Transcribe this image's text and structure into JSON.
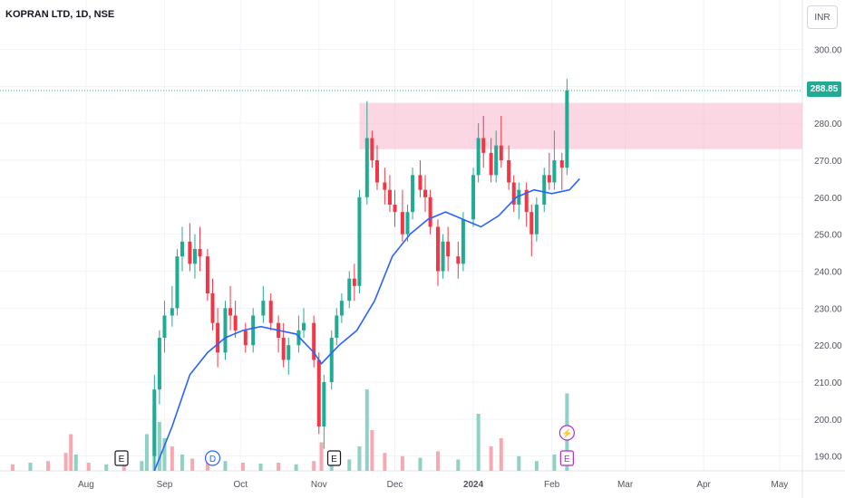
{
  "header": {
    "symbol": "KOPRAN LTD, 1D, NSE",
    "currency": "INR"
  },
  "last_price": "288.85",
  "colors": {
    "up": "#22ab94",
    "down": "#f23645",
    "ma": "#2962ff",
    "zone": "#f8bbd0",
    "vol_up": "#8fd1c4",
    "vol_down": "#f7a8b0",
    "grid": "#f0f3fa",
    "price_line": "#22ab94",
    "event_blue": "#2962ff",
    "event_purple": "#b22bd3"
  },
  "chart_data": {
    "type": "candlestick",
    "title": "KOPRAN LTD, 1D, NSE",
    "ylim": [
      186,
      306
    ],
    "y_ticks": [
      190,
      200,
      210,
      220,
      230,
      240,
      250,
      260,
      270,
      280,
      290,
      300
    ],
    "y_tick_labels": [
      "190.00",
      "200.00",
      "210.00",
      "220.00",
      "230.00",
      "240.00",
      "250.00",
      "260.00",
      "270.00",
      "280.00",
      "290.00",
      "300.00"
    ],
    "x_tick_labels": [
      "Aug",
      "Sep",
      "Oct",
      "Nov",
      "Dec",
      "2024",
      "Feb",
      "Mar",
      "Apr",
      "May"
    ],
    "x_tick_dates": [
      "2023-08-01",
      "2023-09-01",
      "2023-10-01",
      "2023-11-01",
      "2023-12-01",
      "2024-01-01",
      "2024-02-01",
      "2024-03-01",
      "2024-04-01",
      "2024-05-01"
    ],
    "x_range": [
      "2023-06-28",
      "2024-05-10"
    ],
    "resistance_zone": {
      "from": "2023-11-17",
      "to": "2024-05-10",
      "low": 273,
      "high": 285.5
    },
    "last_price_value": 288.85,
    "moving_average": {
      "name": "",
      "values_start": "2023-08-28",
      "points": [
        [
          "2023-08-28",
          186
        ],
        [
          "2023-09-04",
          198
        ],
        [
          "2023-09-11",
          212
        ],
        [
          "2023-09-18",
          218
        ],
        [
          "2023-09-25",
          222
        ],
        [
          "2023-10-02",
          224
        ],
        [
          "2023-10-09",
          225
        ],
        [
          "2023-10-16",
          224
        ],
        [
          "2023-10-23",
          223
        ],
        [
          "2023-10-30",
          218
        ],
        [
          "2023-11-02",
          215
        ],
        [
          "2023-11-09",
          220
        ],
        [
          "2023-11-16",
          224
        ],
        [
          "2023-11-23",
          232
        ],
        [
          "2023-11-30",
          244
        ],
        [
          "2023-12-07",
          250
        ],
        [
          "2023-12-14",
          254
        ],
        [
          "2023-12-21",
          256
        ],
        [
          "2023-12-28",
          254
        ],
        [
          "2024-01-04",
          252
        ],
        [
          "2024-01-11",
          255
        ],
        [
          "2024-01-18",
          260
        ],
        [
          "2024-01-25",
          262
        ],
        [
          "2024-02-01",
          261
        ],
        [
          "2024-02-08",
          262
        ],
        [
          "2024-02-12",
          265
        ]
      ]
    },
    "candles": [
      [
        "2023-08-28",
        190,
        212,
        186,
        208
      ],
      [
        "2023-08-30",
        208,
        224,
        204,
        222
      ],
      [
        "2023-09-01",
        222,
        232,
        218,
        228
      ],
      [
        "2023-09-04",
        228,
        236,
        225,
        230
      ],
      [
        "2023-09-06",
        230,
        246,
        228,
        244
      ],
      [
        "2023-09-08",
        244,
        252,
        240,
        248
      ],
      [
        "2023-09-11",
        248,
        253,
        240,
        242
      ],
      [
        "2023-09-13",
        242,
        250,
        238,
        246
      ],
      [
        "2023-09-15",
        246,
        252,
        240,
        244
      ],
      [
        "2023-09-18",
        244,
        246,
        232,
        234
      ],
      [
        "2023-09-20",
        234,
        238,
        224,
        226
      ],
      [
        "2023-09-22",
        226,
        230,
        214,
        218
      ],
      [
        "2023-09-25",
        218,
        232,
        216,
        230
      ],
      [
        "2023-09-27",
        230,
        236,
        224,
        228
      ],
      [
        "2023-09-29",
        228,
        232,
        222,
        224
      ],
      [
        "2023-10-03",
        224,
        226,
        218,
        220
      ],
      [
        "2023-10-06",
        220,
        230,
        218,
        228
      ],
      [
        "2023-10-10",
        228,
        236,
        226,
        232
      ],
      [
        "2023-10-13",
        232,
        234,
        224,
        226
      ],
      [
        "2023-10-16",
        226,
        228,
        218,
        222
      ],
      [
        "2023-10-18",
        222,
        226,
        214,
        216
      ],
      [
        "2023-10-20",
        216,
        222,
        212,
        220
      ],
      [
        "2023-10-24",
        220,
        228,
        218,
        224
      ],
      [
        "2023-10-26",
        224,
        230,
        222,
        226
      ],
      [
        "2023-10-30",
        226,
        228,
        214,
        216
      ],
      [
        "2023-11-01",
        216,
        218,
        196,
        198
      ],
      [
        "2023-11-03",
        198,
        212,
        192,
        210
      ],
      [
        "2023-11-06",
        210,
        224,
        208,
        222
      ],
      [
        "2023-11-08",
        222,
        230,
        220,
        228
      ],
      [
        "2023-11-10",
        228,
        234,
        226,
        232
      ],
      [
        "2023-11-13",
        232,
        240,
        230,
        238
      ],
      [
        "2023-11-15",
        238,
        242,
        232,
        236
      ],
      [
        "2023-11-17",
        236,
        262,
        234,
        260
      ],
      [
        "2023-11-20",
        260,
        286,
        258,
        276
      ],
      [
        "2023-11-22",
        276,
        278,
        268,
        270
      ],
      [
        "2023-11-24",
        270,
        274,
        262,
        264
      ],
      [
        "2023-11-27",
        264,
        268,
        258,
        262
      ],
      [
        "2023-11-29",
        262,
        266,
        256,
        258
      ],
      [
        "2023-12-01",
        258,
        262,
        252,
        256
      ],
      [
        "2023-12-04",
        256,
        262,
        248,
        250
      ],
      [
        "2023-12-06",
        250,
        258,
        248,
        256
      ],
      [
        "2023-12-08",
        256,
        268,
        254,
        266
      ],
      [
        "2023-12-11",
        266,
        270,
        260,
        262
      ],
      [
        "2023-12-13",
        262,
        266,
        256,
        260
      ],
      [
        "2023-12-15",
        260,
        262,
        250,
        252
      ],
      [
        "2023-12-18",
        252,
        254,
        236,
        240
      ],
      [
        "2023-12-20",
        240,
        250,
        238,
        248
      ],
      [
        "2023-12-22",
        248,
        252,
        240,
        244
      ],
      [
        "2023-12-26",
        244,
        248,
        238,
        242
      ],
      [
        "2023-12-28",
        242,
        256,
        240,
        254
      ],
      [
        "2024-01-01",
        254,
        268,
        252,
        266
      ],
      [
        "2024-01-03",
        266,
        280,
        264,
        276
      ],
      [
        "2024-01-05",
        276,
        282,
        268,
        272
      ],
      [
        "2024-01-08",
        272,
        276,
        264,
        266
      ],
      [
        "2024-01-10",
        266,
        278,
        264,
        274
      ],
      [
        "2024-01-12",
        274,
        282,
        268,
        270
      ],
      [
        "2024-01-15",
        270,
        274,
        262,
        264
      ],
      [
        "2024-01-17",
        264,
        266,
        256,
        258
      ],
      [
        "2024-01-19",
        258,
        264,
        254,
        262
      ],
      [
        "2024-01-22",
        262,
        264,
        252,
        256
      ],
      [
        "2024-01-24",
        256,
        258,
        244,
        250
      ],
      [
        "2024-01-26",
        250,
        260,
        248,
        258
      ],
      [
        "2024-01-29",
        258,
        268,
        256,
        266
      ],
      [
        "2024-01-31",
        266,
        272,
        262,
        264
      ],
      [
        "2024-02-02",
        264,
        278,
        262,
        270
      ],
      [
        "2024-02-05",
        270,
        272,
        262,
        268
      ],
      [
        "2024-02-07",
        268,
        292,
        266,
        288.85
      ]
    ],
    "volume": {
      "scale_max": 100,
      "bars": [
        [
          "2023-07-03",
          8,
          "d"
        ],
        [
          "2023-07-10",
          10,
          "u"
        ],
        [
          "2023-07-17",
          12,
          "d"
        ],
        [
          "2023-07-24",
          22,
          "d"
        ],
        [
          "2023-07-26",
          45,
          "d"
        ],
        [
          "2023-07-28",
          20,
          "u"
        ],
        [
          "2023-08-02",
          10,
          "d"
        ],
        [
          "2023-08-09",
          8,
          "u"
        ],
        [
          "2023-08-16",
          9,
          "d"
        ],
        [
          "2023-08-23",
          12,
          "u"
        ],
        [
          "2023-08-25",
          45,
          "u"
        ],
        [
          "2023-08-28",
          80,
          "u"
        ],
        [
          "2023-08-30",
          60,
          "u"
        ],
        [
          "2023-09-01",
          40,
          "u"
        ],
        [
          "2023-09-04",
          30,
          "d"
        ],
        [
          "2023-09-08",
          20,
          "u"
        ],
        [
          "2023-09-12",
          15,
          "d"
        ],
        [
          "2023-09-18",
          18,
          "d"
        ],
        [
          "2023-09-25",
          12,
          "u"
        ],
        [
          "2023-10-02",
          10,
          "d"
        ],
        [
          "2023-10-09",
          9,
          "u"
        ],
        [
          "2023-10-16",
          10,
          "d"
        ],
        [
          "2023-10-23",
          8,
          "u"
        ],
        [
          "2023-10-30",
          12,
          "d"
        ],
        [
          "2023-11-02",
          35,
          "d"
        ],
        [
          "2023-11-06",
          18,
          "u"
        ],
        [
          "2023-11-13",
          14,
          "u"
        ],
        [
          "2023-11-17",
          30,
          "u"
        ],
        [
          "2023-11-20",
          100,
          "u"
        ],
        [
          "2023-11-22",
          50,
          "d"
        ],
        [
          "2023-11-27",
          22,
          "d"
        ],
        [
          "2023-12-04",
          18,
          "d"
        ],
        [
          "2023-12-11",
          16,
          "u"
        ],
        [
          "2023-12-18",
          24,
          "d"
        ],
        [
          "2023-12-26",
          14,
          "u"
        ],
        [
          "2024-01-03",
          70,
          "u"
        ],
        [
          "2024-01-08",
          30,
          "d"
        ],
        [
          "2024-01-12",
          40,
          "d"
        ],
        [
          "2024-01-19",
          18,
          "u"
        ],
        [
          "2024-01-26",
          12,
          "u"
        ],
        [
          "2024-02-02",
          20,
          "u"
        ],
        [
          "2024-02-07",
          95,
          "u"
        ]
      ]
    },
    "events": [
      {
        "type": "earnings",
        "label": "E",
        "date": "2023-08-15"
      },
      {
        "type": "dividend",
        "label": "D",
        "date": "2023-09-20"
      },
      {
        "type": "earnings",
        "label": "E",
        "date": "2023-11-07"
      },
      {
        "type": "split",
        "label": "⚡",
        "date": "2024-02-07"
      },
      {
        "type": "earnings",
        "label": "E",
        "date": "2024-02-07"
      }
    ]
  }
}
